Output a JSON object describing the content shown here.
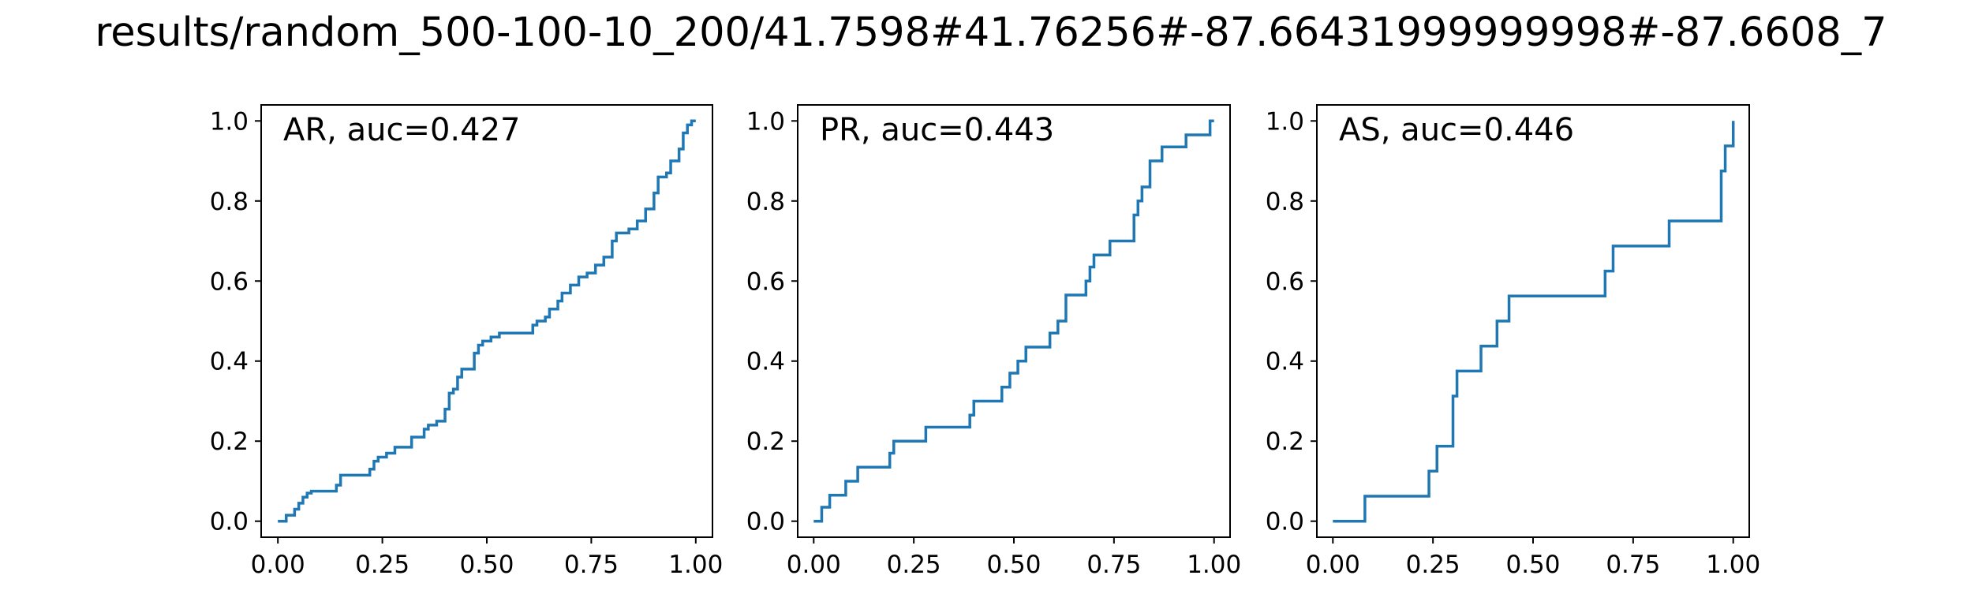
{
  "figure_title": "results/random_500-100-10_200/41.7598#41.76256#-87.66431999999998#-87.6608_7",
  "line_color": "#1f77b4",
  "chart_data": [
    {
      "type": "line",
      "label": "AR, auc=0.427",
      "xlim": [
        0,
        1
      ],
      "ylim": [
        0,
        1
      ],
      "xticks": [
        "0.00",
        "0.25",
        "0.50",
        "0.75",
        "1.00"
      ],
      "yticks": [
        "0.0",
        "0.2",
        "0.4",
        "0.6",
        "0.8",
        "1.0"
      ],
      "grid": false,
      "drawstyle": "steps-post",
      "x": [
        0.0,
        0.02,
        0.04,
        0.05,
        0.06,
        0.07,
        0.08,
        0.14,
        0.15,
        0.22,
        0.23,
        0.24,
        0.26,
        0.28,
        0.32,
        0.35,
        0.36,
        0.38,
        0.4,
        0.41,
        0.42,
        0.43,
        0.44,
        0.47,
        0.48,
        0.49,
        0.51,
        0.53,
        0.61,
        0.62,
        0.64,
        0.65,
        0.67,
        0.68,
        0.7,
        0.72,
        0.74,
        0.76,
        0.78,
        0.8,
        0.81,
        0.84,
        0.86,
        0.88,
        0.9,
        0.91,
        0.93,
        0.94,
        0.96,
        0.97,
        0.98,
        0.99,
        1.0
      ],
      "y": [
        0.0,
        0.015,
        0.03,
        0.045,
        0.06,
        0.07,
        0.075,
        0.09,
        0.115,
        0.13,
        0.15,
        0.16,
        0.17,
        0.185,
        0.21,
        0.23,
        0.24,
        0.25,
        0.28,
        0.32,
        0.33,
        0.36,
        0.38,
        0.42,
        0.44,
        0.45,
        0.46,
        0.47,
        0.49,
        0.5,
        0.51,
        0.53,
        0.55,
        0.57,
        0.59,
        0.61,
        0.62,
        0.64,
        0.66,
        0.7,
        0.72,
        0.73,
        0.75,
        0.78,
        0.82,
        0.86,
        0.87,
        0.9,
        0.93,
        0.97,
        0.99,
        1.0,
        1.0
      ]
    },
    {
      "type": "line",
      "label": "PR, auc=0.443",
      "xlim": [
        0,
        1
      ],
      "ylim": [
        0,
        1
      ],
      "xticks": [
        "0.00",
        "0.25",
        "0.50",
        "0.75",
        "1.00"
      ],
      "yticks": [
        "0.0",
        "0.2",
        "0.4",
        "0.6",
        "0.8",
        "1.0"
      ],
      "grid": false,
      "drawstyle": "steps-post",
      "x": [
        0.0,
        0.02,
        0.04,
        0.08,
        0.11,
        0.19,
        0.2,
        0.28,
        0.39,
        0.4,
        0.47,
        0.49,
        0.51,
        0.53,
        0.59,
        0.61,
        0.63,
        0.68,
        0.69,
        0.7,
        0.74,
        0.8,
        0.81,
        0.82,
        0.84,
        0.87,
        0.93,
        0.99,
        1.0
      ],
      "y": [
        0.0,
        0.035,
        0.065,
        0.1,
        0.135,
        0.17,
        0.2,
        0.235,
        0.265,
        0.3,
        0.335,
        0.37,
        0.4,
        0.435,
        0.47,
        0.5,
        0.565,
        0.6,
        0.635,
        0.665,
        0.7,
        0.765,
        0.8,
        0.835,
        0.9,
        0.935,
        0.965,
        1.0,
        1.0
      ]
    },
    {
      "type": "line",
      "label": "AS, auc=0.446",
      "xlim": [
        0,
        1
      ],
      "ylim": [
        0,
        1
      ],
      "xticks": [
        "0.00",
        "0.25",
        "0.50",
        "0.75",
        "1.00"
      ],
      "yticks": [
        "0.0",
        "0.2",
        "0.4",
        "0.6",
        "0.8",
        "1.0"
      ],
      "grid": false,
      "drawstyle": "steps-post",
      "x": [
        0.0,
        0.08,
        0.24,
        0.26,
        0.3,
        0.31,
        0.37,
        0.41,
        0.44,
        0.68,
        0.7,
        0.84,
        0.97,
        0.98,
        1.0
      ],
      "y": [
        0.0,
        0.0625,
        0.125,
        0.1875,
        0.3125,
        0.375,
        0.4375,
        0.5,
        0.5625,
        0.625,
        0.6875,
        0.75,
        0.875,
        0.9375,
        1.0
      ]
    }
  ]
}
